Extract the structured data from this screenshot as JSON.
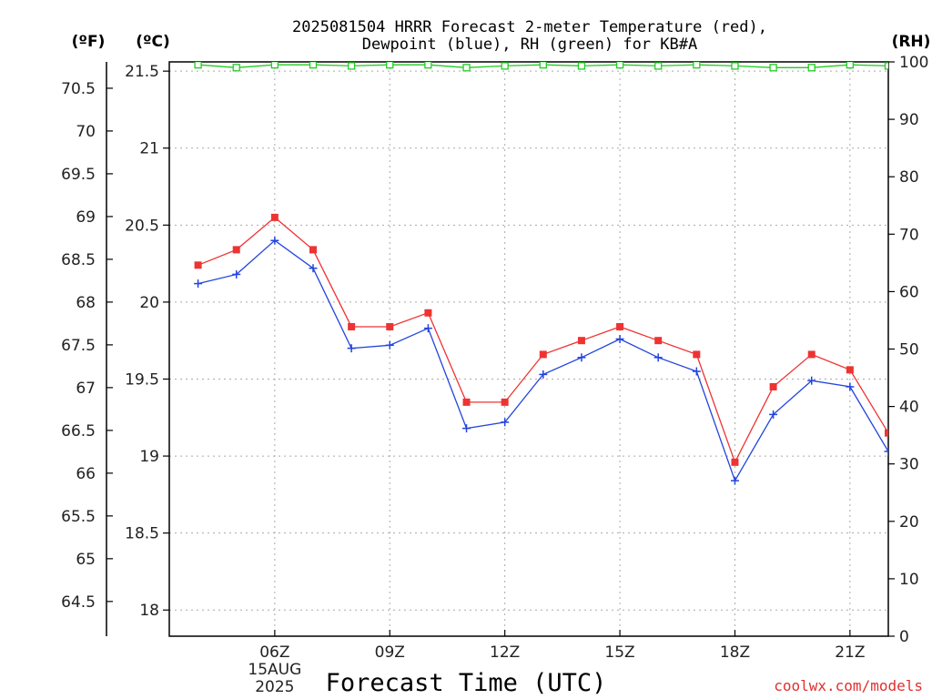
{
  "chart_data": {
    "type": "line",
    "title_line1": "2025081504 HRRR Forecast 2-meter Temperature (red),",
    "title_line2": "Dewpoint (blue), RH (green) for KB#A",
    "xlabel": "Forecast Time (UTC)",
    "credit": "coolwx.com/models",
    "unit_labels": {
      "fahrenheit": "(ºF)",
      "celsius": "(ºC)",
      "rh": "(RH)"
    },
    "x_hours": [
      4,
      5,
      6,
      7,
      8,
      9,
      10,
      11,
      12,
      13,
      14,
      15,
      16,
      17,
      18,
      19,
      20,
      21,
      22
    ],
    "x_ticks": [
      {
        "hour": 6,
        "label": "06Z",
        "sub1": "15AUG",
        "sub2": "2025"
      },
      {
        "hour": 9,
        "label": "09Z"
      },
      {
        "hour": 12,
        "label": "12Z"
      },
      {
        "hour": 15,
        "label": "15Z"
      },
      {
        "hour": 18,
        "label": "18Z"
      },
      {
        "hour": 21,
        "label": "21Z"
      }
    ],
    "xlim": [
      3.25,
      22.0
    ],
    "ylim_celsius": [
      17.83,
      21.56
    ],
    "ylim_rh": [
      0,
      100
    ],
    "celsius_ticks": [
      "18",
      "18.5",
      "19",
      "19.5",
      "20",
      "20.5",
      "21",
      "21.5"
    ],
    "fahrenheit_ticks": [
      "64.5",
      "65",
      "65.5",
      "66",
      "66.5",
      "67",
      "67.5",
      "68",
      "68.5",
      "69",
      "69.5",
      "70",
      "70.5"
    ],
    "rh_ticks": [
      "0",
      "10",
      "20",
      "30",
      "40",
      "50",
      "60",
      "70",
      "80",
      "90",
      "100"
    ],
    "grid": true,
    "series": [
      {
        "name": "Temperature",
        "color": "#ee3333",
        "marker": "square",
        "values": [
          20.24,
          20.34,
          20.55,
          20.34,
          19.84,
          19.84,
          19.93,
          19.35,
          19.35,
          19.66,
          19.75,
          19.84,
          19.75,
          19.66,
          18.96,
          19.45,
          19.66,
          19.56,
          19.15
        ]
      },
      {
        "name": "Dewpoint",
        "color": "#2244dd",
        "marker": "plus",
        "values": [
          20.12,
          20.18,
          20.4,
          20.22,
          19.7,
          19.72,
          19.83,
          19.18,
          19.22,
          19.53,
          19.64,
          19.76,
          19.64,
          19.55,
          18.84,
          19.27,
          19.49,
          19.45,
          19.03
        ]
      },
      {
        "name": "RH",
        "color": "#22cc22",
        "marker": "open-square",
        "axis": "rh",
        "values": [
          99.5,
          99.0,
          99.5,
          99.5,
          99.3,
          99.5,
          99.5,
          99.0,
          99.3,
          99.5,
          99.3,
          99.5,
          99.3,
          99.5,
          99.3,
          99.0,
          99.0,
          99.5,
          99.3
        ]
      }
    ]
  }
}
